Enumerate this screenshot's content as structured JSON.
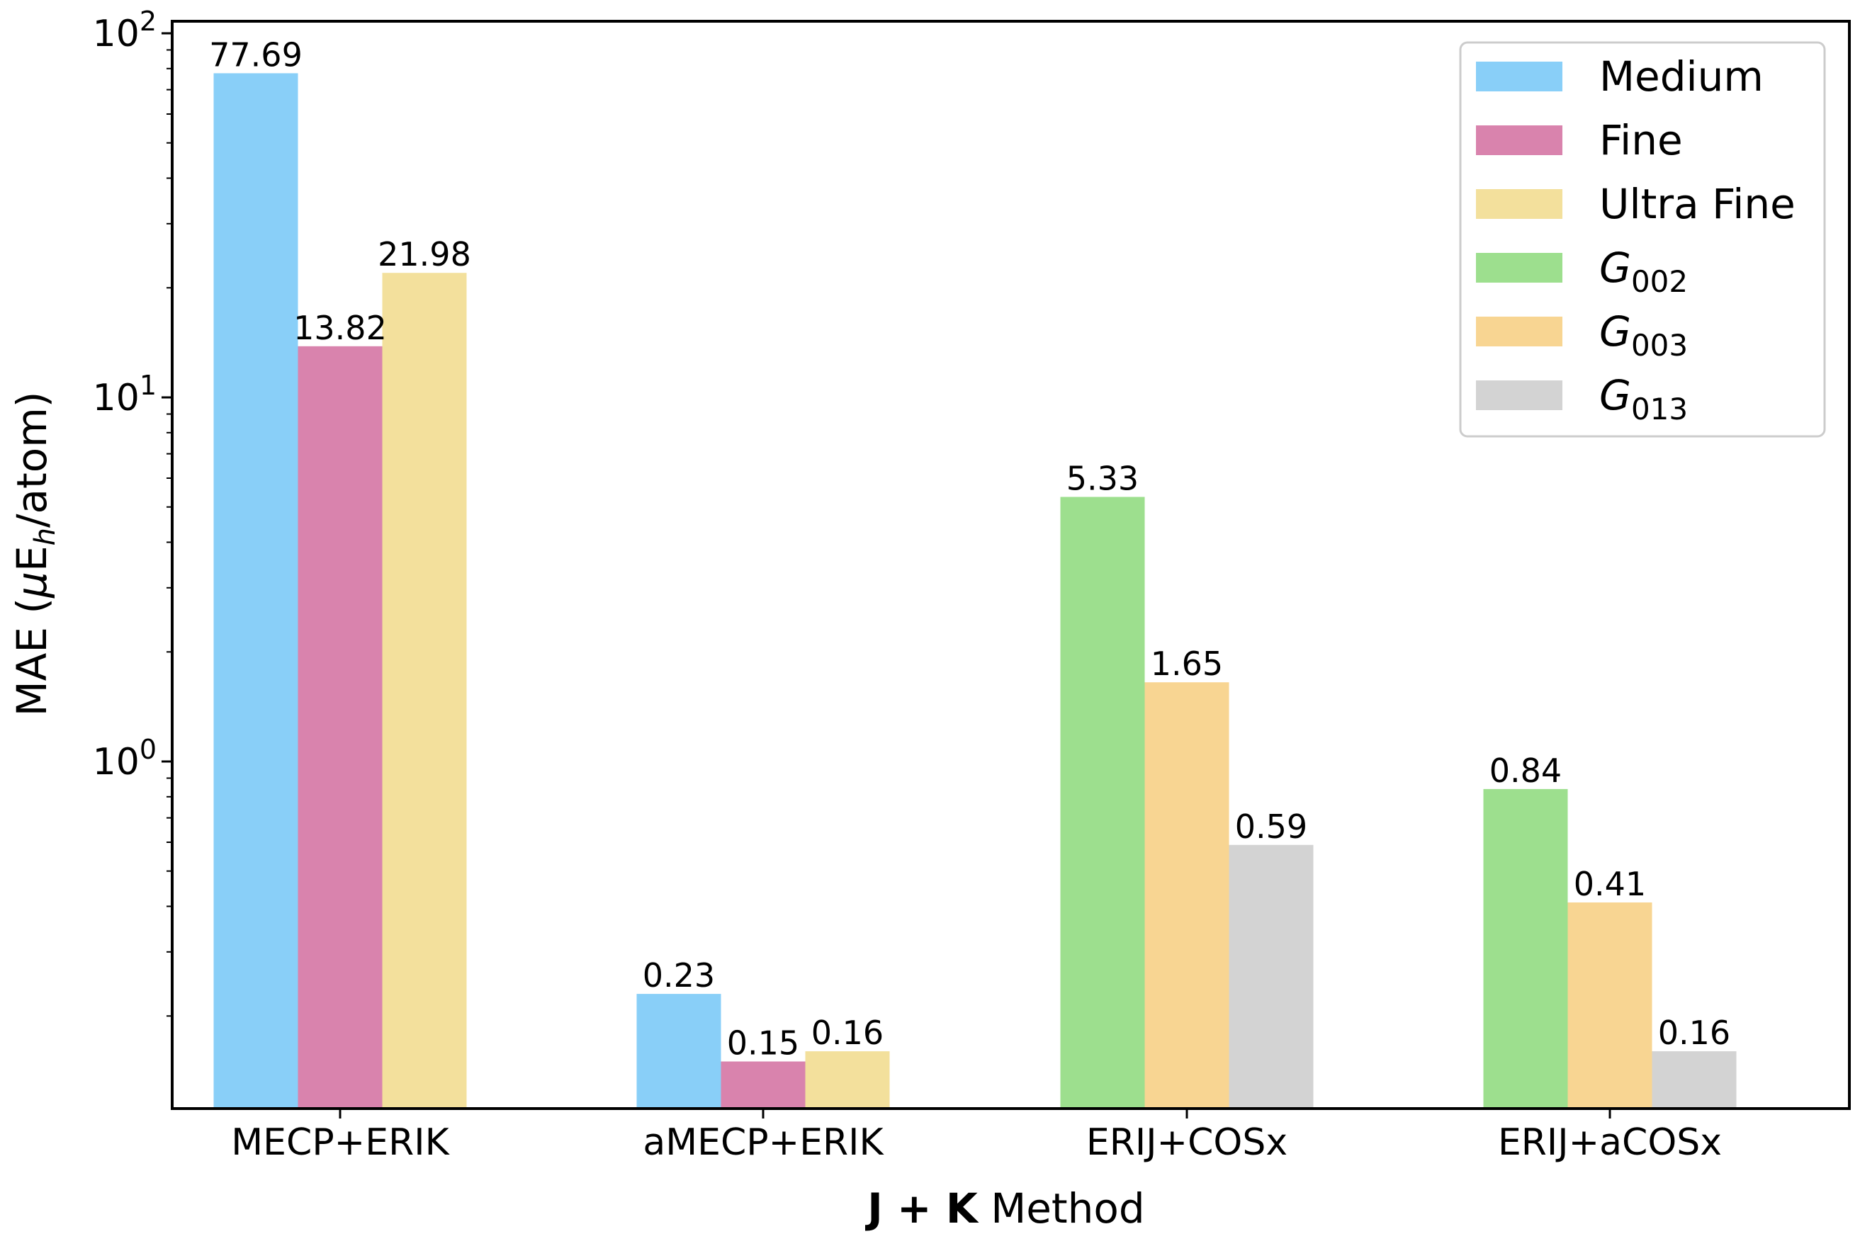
{
  "chart_data": {
    "type": "bar",
    "yscale": "log",
    "ylim": [
      0.13,
      100
    ],
    "categories": [
      "MECP+ERIK",
      "aMECP+ERIK",
      "ERIJ+COSx",
      "ERIJ+aCOSx"
    ],
    "series": [
      {
        "name": "Medium",
        "color": "#89CFF8",
        "values": [
          77.69,
          0.23,
          null,
          null
        ],
        "labels": [
          "77.69",
          "0.23",
          null,
          null
        ]
      },
      {
        "name": "Fine",
        "color": "#D983AD",
        "values": [
          13.82,
          0.15,
          null,
          null
        ],
        "labels": [
          "13.82",
          "0.15",
          null,
          null
        ]
      },
      {
        "name": "Ultra Fine",
        "color": "#F3E09C",
        "values": [
          21.98,
          0.16,
          null,
          null
        ],
        "labels": [
          "21.98",
          "0.16",
          null,
          null
        ]
      },
      {
        "name": "G002",
        "name_base": "G",
        "name_sub": "002",
        "color": "#9DDF8E",
        "values": [
          null,
          null,
          5.33,
          0.84
        ],
        "labels": [
          null,
          null,
          "5.33",
          "0.84"
        ]
      },
      {
        "name": "G003",
        "name_base": "G",
        "name_sub": "003",
        "color": "#F8D592",
        "values": [
          null,
          null,
          1.65,
          0.41
        ],
        "labels": [
          null,
          null,
          "1.65",
          "0.41"
        ]
      },
      {
        "name": "G013",
        "name_base": "G",
        "name_sub": "013",
        "color": "#D3D3D3",
        "values": [
          null,
          null,
          0.59,
          0.16
        ],
        "labels": [
          null,
          null,
          "0.59",
          "0.16"
        ]
      }
    ],
    "yticks": [
      {
        "value": 100,
        "base": "10",
        "exp": "2"
      },
      {
        "value": 10,
        "base": "10",
        "exp": "1"
      },
      {
        "value": 1,
        "base": "10",
        "exp": "0"
      }
    ],
    "ylabel": {
      "pre": "MAE (",
      "mu": "μ",
      "e": "E",
      "sub": "h",
      "post": "/atom)"
    },
    "xlabel": {
      "bold": "J + K",
      "rest": " Method"
    },
    "legend_position": "top-right",
    "grid": false
  }
}
